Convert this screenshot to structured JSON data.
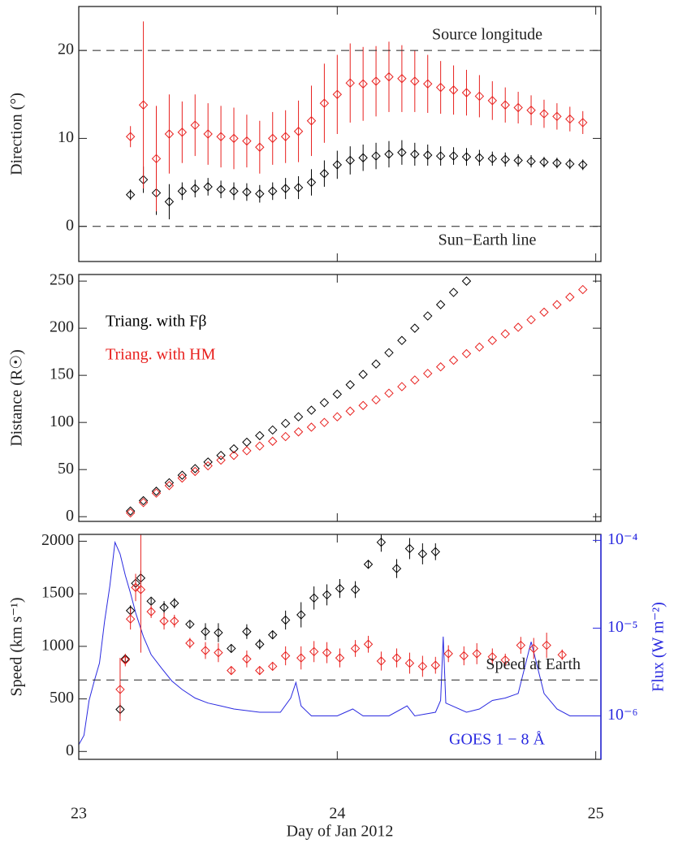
{
  "chart_data": [
    {
      "type": "scatter",
      "ylabel": "Direction (°)",
      "xlim": [
        23,
        25.02
      ],
      "xticks": [
        23,
        24,
        25
      ],
      "ylim": [
        -4,
        25
      ],
      "yticks": [
        0,
        10,
        20
      ],
      "hlines": [
        {
          "value": 20,
          "label": "Source longitude"
        },
        {
          "value": 0,
          "label": "Sun−Earth line"
        }
      ],
      "series": [
        {
          "color": "#000000",
          "x": [
            23.2,
            23.25,
            23.3,
            23.35,
            23.4,
            23.45,
            23.5,
            23.55,
            23.6,
            23.65,
            23.7,
            23.75,
            23.8,
            23.85,
            23.9,
            23.95,
            24.0,
            24.05,
            24.1,
            24.15,
            24.2,
            24.25,
            24.3,
            24.35,
            24.4,
            24.45,
            24.5,
            24.55,
            24.6,
            24.65,
            24.7,
            24.75,
            24.8,
            24.85,
            24.9,
            24.95
          ],
          "values": [
            3.6,
            5.3,
            3.8,
            2.8,
            4.0,
            4.3,
            4.5,
            4.2,
            4.0,
            3.9,
            3.7,
            4.0,
            4.3,
            4.4,
            5.0,
            6.0,
            7.0,
            7.5,
            7.8,
            8.0,
            8.2,
            8.4,
            8.2,
            8.1,
            8.0,
            8.0,
            7.9,
            7.8,
            7.7,
            7.6,
            7.5,
            7.4,
            7.3,
            7.2,
            7.1,
            7.0
          ],
          "errors": [
            0.6,
            1.5,
            2.5,
            2.0,
            1.0,
            1.0,
            1.0,
            1.0,
            1.0,
            1.0,
            1.0,
            1.0,
            1.2,
            1.3,
            1.5,
            1.5,
            1.6,
            1.6,
            1.5,
            1.5,
            1.5,
            1.4,
            1.3,
            1.2,
            1.1,
            1.0,
            1.0,
            0.9,
            0.8,
            0.8,
            0.7,
            0.7,
            0.6,
            0.6,
            0.6,
            0.6
          ]
        },
        {
          "color": "#e8201e",
          "x": [
            23.2,
            23.25,
            23.3,
            23.35,
            23.4,
            23.45,
            23.5,
            23.55,
            23.6,
            23.65,
            23.7,
            23.75,
            23.8,
            23.85,
            23.9,
            23.95,
            24.0,
            24.05,
            24.1,
            24.15,
            24.2,
            24.25,
            24.3,
            24.35,
            24.4,
            24.45,
            24.5,
            24.55,
            24.6,
            24.65,
            24.7,
            24.75,
            24.8,
            24.85,
            24.9,
            24.95
          ],
          "values": [
            10.2,
            13.8,
            7.7,
            10.5,
            10.7,
            11.5,
            10.5,
            10.2,
            10.0,
            9.7,
            9.0,
            10.0,
            10.2,
            10.8,
            12.0,
            14.0,
            15.0,
            16.3,
            16.2,
            16.5,
            17.0,
            16.8,
            16.5,
            16.2,
            15.8,
            15.5,
            15.2,
            14.8,
            14.3,
            13.8,
            13.5,
            13.2,
            12.8,
            12.5,
            12.2,
            11.8
          ],
          "errors": [
            1.2,
            9.5,
            6,
            4.5,
            3.5,
            3.5,
            3.5,
            3.5,
            3.5,
            3,
            3,
            3,
            3,
            3.5,
            4,
            4.5,
            4.5,
            4.5,
            4.2,
            4,
            4,
            3.8,
            3.5,
            3.3,
            3,
            2.8,
            2.6,
            2.4,
            2.2,
            2,
            1.8,
            1.7,
            1.6,
            1.5,
            1.4,
            1.3
          ]
        }
      ]
    },
    {
      "type": "scatter",
      "ylabel": "Distance (R☉)",
      "xlim": [
        23,
        25.02
      ],
      "xticks": [
        23,
        24,
        25
      ],
      "ylim": [
        -5,
        257
      ],
      "yticks": [
        0,
        50,
        100,
        150,
        200,
        250
      ],
      "series": [
        {
          "name": "Triang. with Fβ",
          "color": "#000000",
          "x": [
            23.2,
            23.25,
            23.3,
            23.35,
            23.4,
            23.45,
            23.5,
            23.55,
            23.6,
            23.65,
            23.7,
            23.75,
            23.8,
            23.85,
            23.9,
            23.95,
            24.0,
            24.05,
            24.1,
            24.15,
            24.2,
            24.25,
            24.3,
            24.35,
            24.4,
            24.45,
            24.5
          ],
          "values": [
            6,
            17,
            27,
            36,
            44,
            51,
            58,
            65,
            72,
            79,
            86,
            92,
            99,
            106,
            113,
            121,
            130,
            140,
            151,
            162,
            174,
            187,
            200,
            213,
            225,
            238,
            250
          ]
        },
        {
          "name": "Triang. with HM",
          "color": "#e8201e",
          "x": [
            23.2,
            23.25,
            23.3,
            23.35,
            23.4,
            23.45,
            23.5,
            23.55,
            23.6,
            23.65,
            23.7,
            23.75,
            23.8,
            23.85,
            23.9,
            23.95,
            24.0,
            24.05,
            24.1,
            24.15,
            24.2,
            24.25,
            24.3,
            24.35,
            24.4,
            24.45,
            24.5,
            24.55,
            24.6,
            24.65,
            24.7,
            24.75,
            24.8,
            24.85,
            24.9,
            24.95
          ],
          "values": [
            4,
            15,
            25,
            33,
            41,
            48,
            54,
            60,
            65,
            70,
            75,
            80,
            85,
            90,
            95,
            100,
            106,
            112,
            118,
            124,
            131,
            138,
            145,
            152,
            159,
            166,
            173,
            180,
            187,
            194,
            201,
            209,
            217,
            225,
            233,
            241
          ]
        }
      ]
    },
    {
      "type": "scatter",
      "xlabel": "Day of Jan 2012",
      "ylabel": "Speed (km s⁻¹)",
      "y2label": "Flux (W m⁻²)",
      "xlim": [
        23,
        25.02
      ],
      "xticks": [
        23,
        24,
        25
      ],
      "xtick_labels": true,
      "ylim": [
        -75,
        2065
      ],
      "yticks": [
        0,
        500,
        1000,
        1500,
        2000
      ],
      "y2lim": [
        3.2e-07,
        0.000117
      ],
      "y2scale": "log",
      "y2color": "#2a2ae0",
      "y2ticks": [
        {
          "value": 0.0001,
          "label": "10⁻⁴"
        },
        {
          "value": 1e-05,
          "label": "10⁻⁵"
        },
        {
          "value": 1e-06,
          "label": "10⁻⁶"
        }
      ],
      "hlines": [
        {
          "value": 680,
          "label": "Speed at Earth"
        }
      ],
      "series": [
        {
          "name": "GOES 1 − 8 Å",
          "type": "line",
          "axis": "y2",
          "color": "#2a2ae0",
          "x": [
            23.0,
            23.02,
            23.04,
            23.06,
            23.08,
            23.1,
            23.12,
            23.14,
            23.16,
            23.18,
            23.2,
            23.22,
            23.25,
            23.28,
            23.32,
            23.36,
            23.4,
            23.45,
            23.5,
            23.55,
            23.6,
            23.7,
            23.78,
            23.82,
            23.84,
            23.86,
            23.9,
            24.0,
            24.06,
            24.1,
            24.2,
            24.27,
            24.3,
            24.38,
            24.4,
            24.41,
            24.42,
            24.5,
            24.55,
            24.6,
            24.65,
            24.7,
            24.75,
            24.8,
            24.85,
            24.9,
            25.0
          ],
          "values": [
            4.7e-07,
            6e-07,
            1.5e-06,
            2.5e-06,
            4e-06,
            1.2e-05,
            3e-05,
            9.5e-05,
            7e-05,
            4e-05,
            2.5e-05,
            1.5e-05,
            8e-06,
            5e-06,
            3.5e-06,
            2.5e-06,
            2e-06,
            1.6e-06,
            1.4e-06,
            1.3e-06,
            1.2e-06,
            1.1e-06,
            1.1e-06,
            1.6e-06,
            2.4e-06,
            1.3e-06,
            1e-06,
            1e-06,
            1.2e-06,
            1e-06,
            1e-06,
            1.3e-06,
            1e-06,
            1.1e-06,
            1.5e-06,
            8e-06,
            1.4e-06,
            1.1e-06,
            1.2e-06,
            1.5e-06,
            1.6e-06,
            1.8e-06,
            7e-06,
            1.8e-06,
            1.2e-06,
            1e-06,
            1e-06
          ]
        },
        {
          "color": "#000000",
          "x": [
            23.16,
            23.18,
            23.2,
            23.22,
            23.24,
            23.28,
            23.33,
            23.37,
            23.43,
            23.49,
            23.54,
            23.59,
            23.65,
            23.7,
            23.75,
            23.8,
            23.86,
            23.91,
            23.96,
            24.01,
            24.07,
            24.12,
            24.17,
            24.23,
            24.28,
            24.33,
            24.38
          ],
          "values": [
            400,
            880,
            1340,
            1600,
            1650,
            1430,
            1370,
            1410,
            1210,
            1140,
            1130,
            980,
            1140,
            1020,
            1110,
            1250,
            1300,
            1460,
            1490,
            1550,
            1540,
            1780,
            1990,
            1740,
            1930,
            1880,
            1900
          ],
          "errors": [
            60,
            40,
            50,
            60,
            70,
            30,
            60,
            50,
            30,
            80,
            90,
            40,
            70,
            50,
            40,
            90,
            120,
            110,
            100,
            90,
            80,
            40,
            90,
            90,
            100,
            100,
            80
          ]
        },
        {
          "color": "#e8201e",
          "x": [
            23.16,
            23.18,
            23.2,
            23.22,
            23.24,
            23.28,
            23.33,
            23.37,
            23.43,
            23.49,
            23.54,
            23.59,
            23.65,
            23.7,
            23.75,
            23.8,
            23.86,
            23.91,
            23.96,
            24.01,
            24.07,
            24.12,
            24.17,
            24.23,
            24.28,
            24.33,
            24.38,
            24.43,
            24.49,
            24.54,
            24.6,
            24.65,
            24.71,
            24.76,
            24.81,
            24.87
          ],
          "values": [
            590,
            870,
            1260,
            1560,
            1540,
            1330,
            1240,
            1240,
            1030,
            960,
            940,
            770,
            880,
            770,
            810,
            910,
            890,
            950,
            940,
            890,
            980,
            1020,
            860,
            890,
            840,
            810,
            820,
            930,
            910,
            930,
            900,
            870,
            1010,
            980,
            1010,
            920
          ],
          "errors": [
            300,
            60,
            100,
            130,
            600,
            60,
            80,
            60,
            50,
            80,
            90,
            40,
            80,
            40,
            40,
            90,
            110,
            100,
            100,
            90,
            80,
            80,
            90,
            90,
            100,
            100,
            80,
            80,
            90,
            100,
            80,
            60,
            80,
            100,
            120,
            50
          ]
        }
      ]
    }
  ]
}
